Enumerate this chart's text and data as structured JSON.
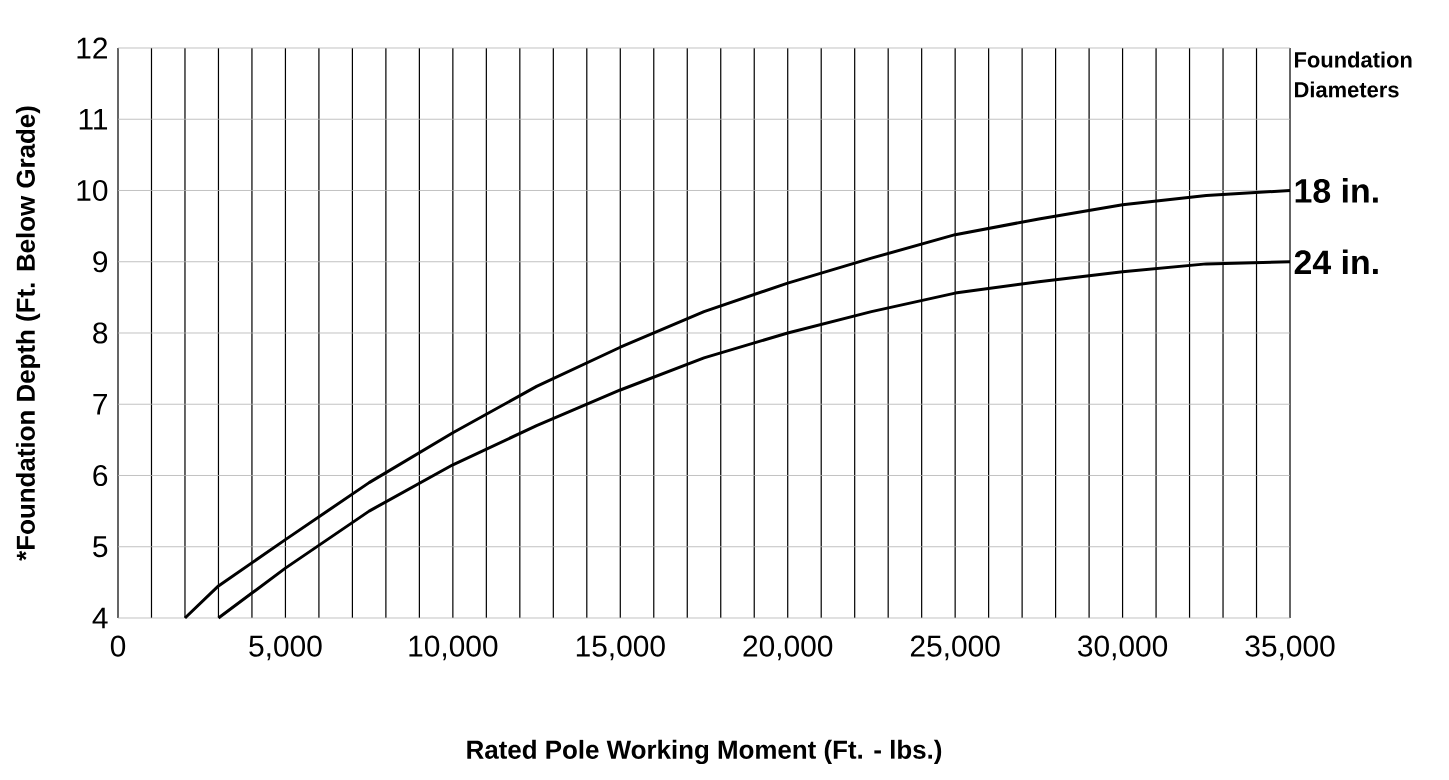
{
  "chart_data": {
    "type": "line",
    "xlabel": "Rated Pole Working Moment (Ft. - lbs.)",
    "ylabel": "*Foundation Depth (Ft. Below Grade)",
    "legend_title": "Foundation Diameters",
    "x": [
      2000,
      3000,
      5000,
      7500,
      10000,
      12500,
      15000,
      17500,
      20000,
      22500,
      25000,
      27500,
      30000,
      32500,
      35000
    ],
    "series": [
      {
        "name": "18 in.",
        "color": "#000000",
        "values": [
          4.0,
          4.45,
          5.1,
          5.9,
          6.6,
          7.25,
          7.8,
          8.3,
          8.7,
          9.05,
          9.38,
          9.6,
          9.8,
          9.93,
          10.0
        ]
      },
      {
        "name": "24 in.",
        "color": "#000000",
        "x": [
          3000,
          4000,
          5000,
          7500,
          10000,
          12500,
          15000,
          17500,
          20000,
          22500,
          25000,
          27500,
          30000,
          32500,
          35000
        ],
        "values": [
          4.0,
          4.35,
          4.7,
          5.5,
          6.15,
          6.7,
          7.2,
          7.65,
          8.0,
          8.3,
          8.56,
          8.72,
          8.86,
          8.97,
          9.0
        ]
      }
    ],
    "xlim": [
      0,
      35000
    ],
    "ylim": [
      4,
      12
    ],
    "xticks": [
      0,
      {
        "value": 1000,
        "label": null
      },
      {
        "value": 2000,
        "label": null
      },
      {
        "value": 3000,
        "label": null
      },
      {
        "value": 4000,
        "label": null
      },
      {
        "value": 5000,
        "label": "5,000"
      },
      {
        "value": 6000,
        "label": null
      },
      {
        "value": 7000,
        "label": null
      },
      {
        "value": 8000,
        "label": null
      },
      {
        "value": 9000,
        "label": null
      },
      {
        "value": 10000,
        "label": "10,000"
      },
      {
        "value": 11000,
        "label": null
      },
      {
        "value": 12000,
        "label": null
      },
      {
        "value": 13000,
        "label": null
      },
      {
        "value": 14000,
        "label": null
      },
      {
        "value": 15000,
        "label": "15,000"
      },
      {
        "value": 16000,
        "label": null
      },
      {
        "value": 17000,
        "label": null
      },
      {
        "value": 18000,
        "label": null
      },
      {
        "value": 19000,
        "label": null
      },
      {
        "value": 20000,
        "label": "20,000"
      },
      {
        "value": 21000,
        "label": null
      },
      {
        "value": 22000,
        "label": null
      },
      {
        "value": 23000,
        "label": null
      },
      {
        "value": 24000,
        "label": null
      },
      {
        "value": 25000,
        "label": "25,000"
      },
      {
        "value": 26000,
        "label": null
      },
      {
        "value": 27000,
        "label": null
      },
      {
        "value": 28000,
        "label": null
      },
      {
        "value": 29000,
        "label": null
      },
      {
        "value": 30000,
        "label": "30,000"
      },
      {
        "value": 31000,
        "label": null
      },
      {
        "value": 32000,
        "label": null
      },
      {
        "value": 33000,
        "label": null
      },
      {
        "value": 34000,
        "label": null
      },
      {
        "value": 35000,
        "label": "35,000"
      }
    ],
    "yticks": [
      4,
      5,
      6,
      7,
      8,
      9,
      10,
      11,
      12
    ],
    "grid": true,
    "legend": "right",
    "line_style": "solid",
    "marker": "none"
  }
}
